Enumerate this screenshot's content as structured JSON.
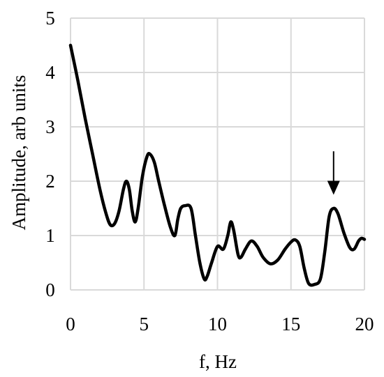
{
  "chart_data": {
    "type": "line",
    "title": "",
    "xlabel": "f, Hz",
    "ylabel": "Amplitude, arb units",
    "xlim": [
      0,
      20
    ],
    "ylim": [
      0,
      5
    ],
    "xticks": [
      0,
      5,
      10,
      15,
      20
    ],
    "yticks": [
      0,
      1,
      2,
      3,
      4,
      5
    ],
    "grid": true,
    "legend": "none",
    "series_color": "#000000",
    "grid_color": "#d9d9d9",
    "series": [
      {
        "values": [
          [
            0.0,
            4.5
          ],
          [
            0.5,
            3.85
          ],
          [
            1.0,
            3.15
          ],
          [
            1.5,
            2.5
          ],
          [
            2.0,
            1.85
          ],
          [
            2.4,
            1.42
          ],
          [
            2.7,
            1.2
          ],
          [
            3.0,
            1.22
          ],
          [
            3.3,
            1.45
          ],
          [
            3.6,
            1.85
          ],
          [
            3.8,
            2.0
          ],
          [
            4.0,
            1.85
          ],
          [
            4.2,
            1.45
          ],
          [
            4.4,
            1.25
          ],
          [
            4.6,
            1.5
          ],
          [
            4.9,
            2.1
          ],
          [
            5.2,
            2.45
          ],
          [
            5.4,
            2.5
          ],
          [
            5.7,
            2.35
          ],
          [
            6.0,
            2.0
          ],
          [
            6.4,
            1.55
          ],
          [
            6.8,
            1.15
          ],
          [
            7.1,
            1.0
          ],
          [
            7.3,
            1.3
          ],
          [
            7.5,
            1.5
          ],
          [
            7.8,
            1.55
          ],
          [
            8.2,
            1.5
          ],
          [
            8.5,
            1.0
          ],
          [
            8.8,
            0.5
          ],
          [
            9.1,
            0.2
          ],
          [
            9.3,
            0.25
          ],
          [
            9.6,
            0.5
          ],
          [
            10.0,
            0.8
          ],
          [
            10.4,
            0.75
          ],
          [
            10.7,
            1.0
          ],
          [
            10.9,
            1.25
          ],
          [
            11.1,
            1.1
          ],
          [
            11.4,
            0.65
          ],
          [
            11.6,
            0.6
          ],
          [
            11.9,
            0.75
          ],
          [
            12.3,
            0.9
          ],
          [
            12.7,
            0.8
          ],
          [
            13.1,
            0.6
          ],
          [
            13.6,
            0.48
          ],
          [
            14.1,
            0.55
          ],
          [
            14.6,
            0.75
          ],
          [
            15.0,
            0.88
          ],
          [
            15.3,
            0.92
          ],
          [
            15.6,
            0.8
          ],
          [
            15.9,
            0.4
          ],
          [
            16.2,
            0.12
          ],
          [
            16.6,
            0.1
          ],
          [
            17.0,
            0.2
          ],
          [
            17.3,
            0.7
          ],
          [
            17.6,
            1.35
          ],
          [
            17.9,
            1.5
          ],
          [
            18.2,
            1.4
          ],
          [
            18.6,
            1.05
          ],
          [
            19.0,
            0.78
          ],
          [
            19.3,
            0.75
          ],
          [
            19.6,
            0.9
          ],
          [
            19.8,
            0.95
          ],
          [
            20.0,
            0.93
          ]
        ]
      }
    ],
    "annotations": [
      {
        "type": "arrow",
        "x": 17.9,
        "y_from": 2.55,
        "y_to": 1.75
      }
    ]
  }
}
